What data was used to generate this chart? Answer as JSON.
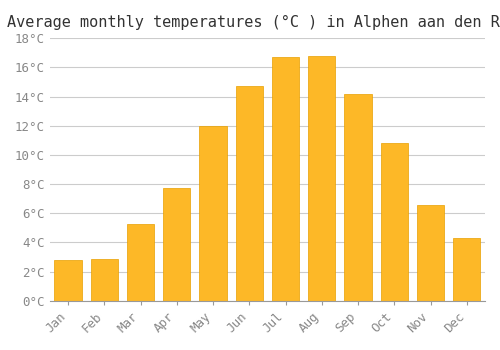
{
  "title": "Average monthly temperatures (°C ) in Alphen aan den Rijn",
  "months": [
    "Jan",
    "Feb",
    "Mar",
    "Apr",
    "May",
    "Jun",
    "Jul",
    "Aug",
    "Sep",
    "Oct",
    "Nov",
    "Dec"
  ],
  "temperatures": [
    2.8,
    2.9,
    5.3,
    7.7,
    12.0,
    14.7,
    16.7,
    16.8,
    14.2,
    10.8,
    6.6,
    4.3
  ],
  "bar_color": "#FDB827",
  "bar_edge_color": "#E8A000",
  "background_color": "#FFFFFF",
  "grid_color": "#CCCCCC",
  "tick_label_color": "#888888",
  "title_color": "#333333",
  "ylim": [
    0,
    18
  ],
  "yticks": [
    0,
    2,
    4,
    6,
    8,
    10,
    12,
    14,
    16,
    18
  ],
  "title_fontsize": 11,
  "tick_fontsize": 9,
  "figsize": [
    5.0,
    3.5
  ],
  "dpi": 100
}
